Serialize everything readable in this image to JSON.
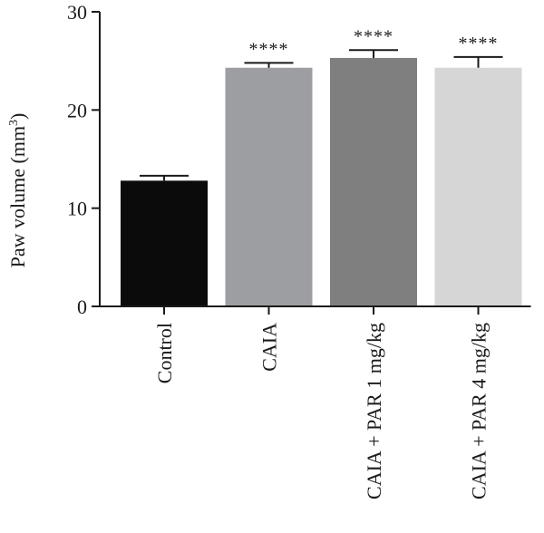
{
  "chart_data": {
    "type": "bar",
    "ylabel": "Paw volume (mm",
    "ylabel_superscript": "3",
    "ylabel_close": ")",
    "ylim": [
      0,
      30
    ],
    "yticks": [
      0,
      10,
      20,
      30
    ],
    "grid": false,
    "categories": [
      "Control",
      "CAIA",
      "CAIA + PAR 1 mg/kg",
      "CAIA + PAR 4 mg/kg"
    ],
    "values": [
      12.8,
      24.3,
      25.3,
      24.3
    ],
    "errors": [
      0.5,
      0.5,
      0.8,
      1.1
    ],
    "significance": [
      "",
      "****",
      "****",
      "****"
    ],
    "colors": [
      "#0b0b0c",
      "#9d9ea1",
      "#7e7f7e",
      "#d6d6d6"
    ]
  }
}
